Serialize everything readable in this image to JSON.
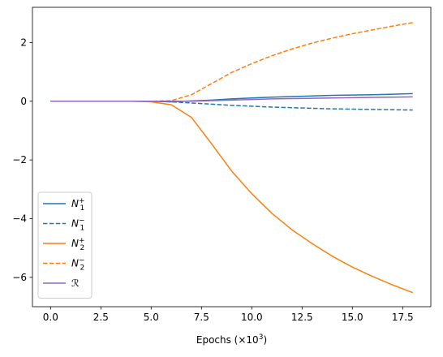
{
  "chart_data": {
    "type": "line",
    "title": "",
    "xlabel": "Epochs (×10",
    "xlabel_sup": "3",
    "xlabel_suffix": ")",
    "ylabel": "",
    "xlim": [
      -0.9,
      18.9
    ],
    "ylim": [
      -7.0,
      3.2
    ],
    "xticks": [
      0.0,
      2.5,
      5.0,
      7.5,
      10.0,
      12.5,
      15.0,
      17.5
    ],
    "xtick_labels": [
      "0.0",
      "2.5",
      "5.0",
      "7.5",
      "10.0",
      "12.5",
      "15.0",
      "17.5"
    ],
    "yticks": [
      -6,
      -4,
      -2,
      0,
      2
    ],
    "ytick_labels": [
      "−6",
      "−4",
      "−2",
      "0",
      "2"
    ],
    "grid": false,
    "legend_position": "lower-left",
    "x": [
      0,
      1,
      2,
      3,
      4,
      5,
      6,
      7,
      8,
      9,
      10,
      11,
      12,
      13,
      14,
      15,
      16,
      17,
      18
    ],
    "series": [
      {
        "name": "N1+",
        "label_base": "N",
        "label_sub": "1",
        "label_sup": "+",
        "color": "#1f77b4",
        "dash": "solid",
        "values": [
          0,
          0,
          0,
          0,
          0,
          0,
          -0.02,
          0.01,
          0.04,
          0.08,
          0.11,
          0.14,
          0.16,
          0.18,
          0.2,
          0.21,
          0.22,
          0.24,
          0.26
        ]
      },
      {
        "name": "N1−",
        "label_base": "N",
        "label_sub": "1",
        "label_sup": "−",
        "color": "#1f77b4",
        "dash": "dashed",
        "values": [
          0,
          0,
          0,
          0,
          0,
          0,
          -0.02,
          -0.06,
          -0.1,
          -0.14,
          -0.17,
          -0.2,
          -0.22,
          -0.24,
          -0.26,
          -0.27,
          -0.28,
          -0.29,
          -0.3
        ]
      },
      {
        "name": "N2+",
        "label_base": "N",
        "label_sub": "2",
        "label_sup": "+",
        "color": "#ff7f0e",
        "dash": "solid",
        "values": [
          0,
          0,
          0,
          0,
          0,
          -0.02,
          -0.12,
          -0.55,
          -1.45,
          -2.38,
          -3.15,
          -3.82,
          -4.38,
          -4.85,
          -5.28,
          -5.65,
          -5.97,
          -6.26,
          -6.52
        ]
      },
      {
        "name": "N2−",
        "label_base": "N",
        "label_sub": "2",
        "label_sup": "−",
        "color": "#ff7f0e",
        "dash": "dashed",
        "values": [
          0,
          0,
          0,
          0,
          0,
          0,
          0.02,
          0.22,
          0.6,
          0.98,
          1.28,
          1.55,
          1.78,
          1.98,
          2.15,
          2.3,
          2.43,
          2.56,
          2.68
        ]
      },
      {
        "name": "R",
        "label_base": "ℛ",
        "label_sub": "",
        "label_sup": "",
        "color": "#9467bd",
        "dash": "solid",
        "values": [
          0,
          0,
          0,
          0,
          0,
          0,
          0,
          0,
          0.02,
          0.04,
          0.06,
          0.08,
          0.09,
          0.1,
          0.11,
          0.12,
          0.13,
          0.14,
          0.15
        ]
      }
    ]
  }
}
